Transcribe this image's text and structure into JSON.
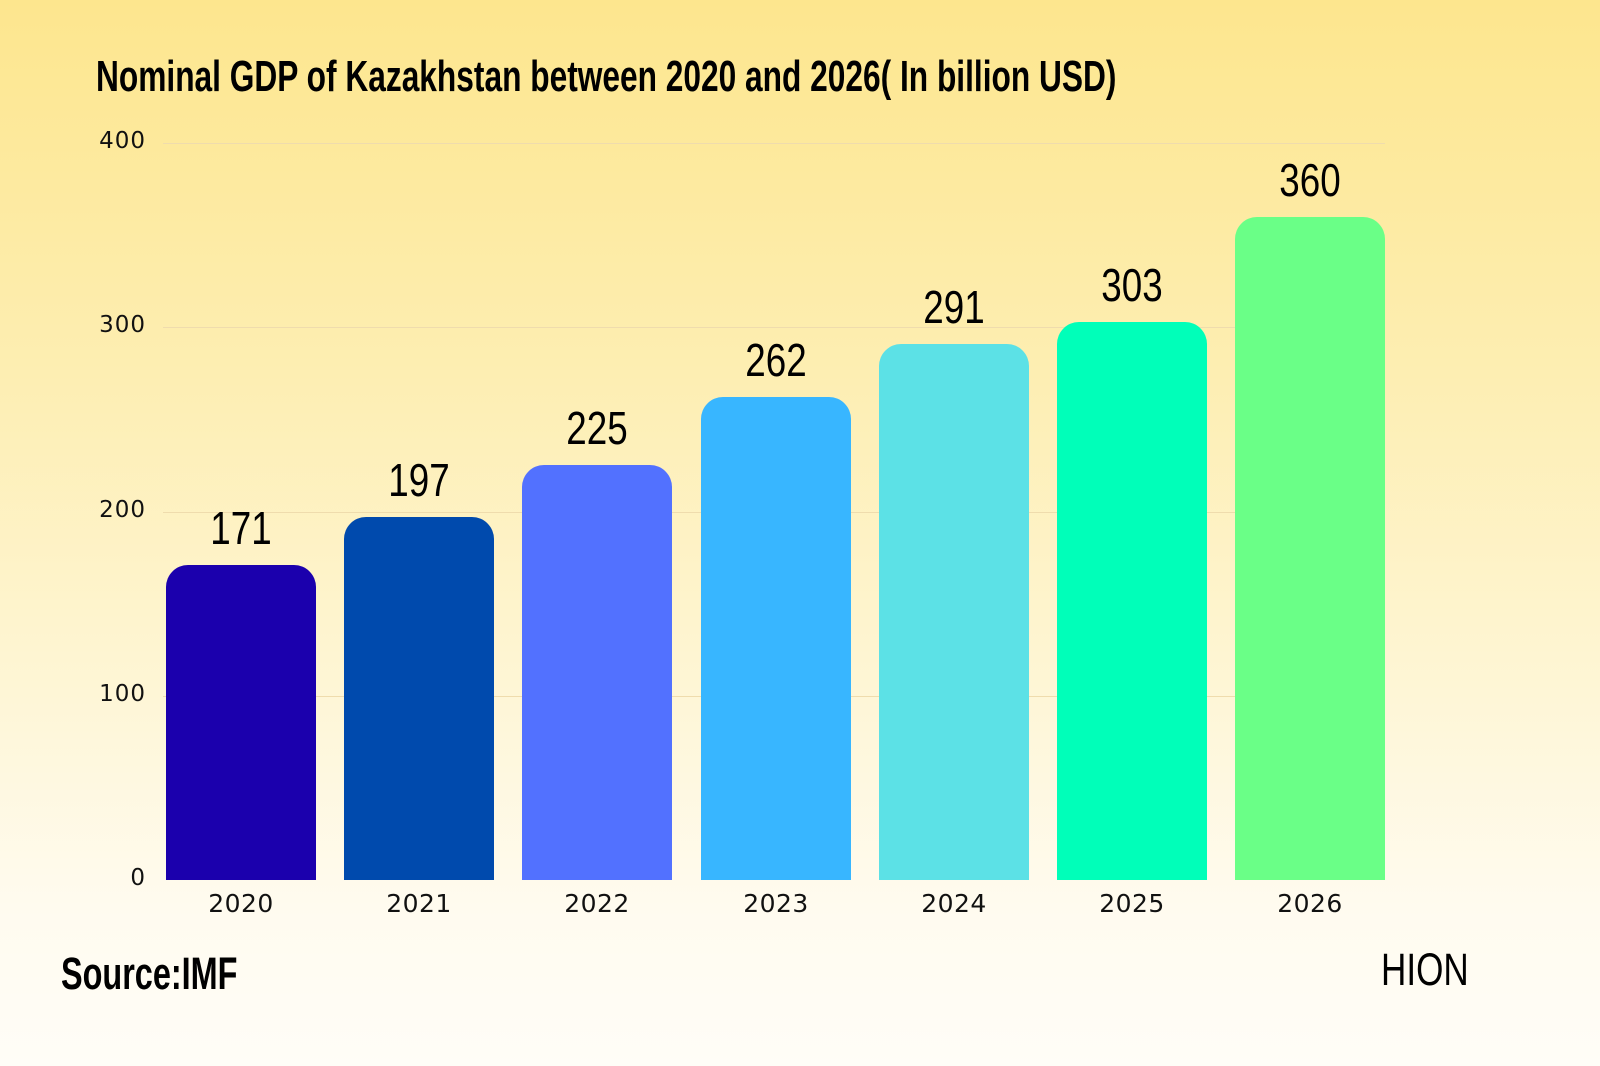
{
  "chart_data": {
    "type": "bar",
    "title": "Nominal GDP of Kazakhstan between 2020 and 2026( In billion USD)",
    "xlabel": "",
    "ylabel": "",
    "categories": [
      "2020",
      "2021",
      "2022",
      "2023",
      "2024",
      "2025",
      "2026"
    ],
    "values": [
      171,
      197,
      225,
      262,
      291,
      303,
      360
    ],
    "colors": [
      "#1b00ad",
      "#004aad",
      "#5271ff",
      "#38b6ff",
      "#5ce1e6",
      "#00ffb9",
      "#6aff87"
    ],
    "ylim": [
      0,
      400
    ],
    "yticks": [
      0,
      100,
      200,
      300,
      400
    ],
    "grid": true,
    "legend": null,
    "data_labels": true
  },
  "header": {
    "title": "Nominal GDP of Kazakhstan between 2020 and 2026( In billion USD)"
  },
  "axis": {
    "yticks": [
      "400",
      "300",
      "200",
      "100",
      "0"
    ]
  },
  "footer": {
    "source": "Source:IMF",
    "brand": "HION"
  }
}
